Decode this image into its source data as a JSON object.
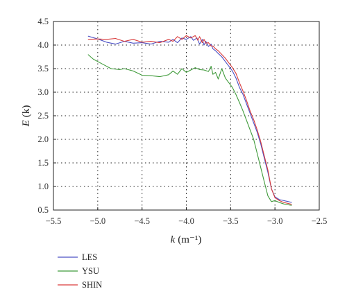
{
  "chart_data": {
    "type": "line",
    "xlabel": "k (m⁻¹)",
    "xlabel_var": "k",
    "xlabel_unit": "(m⁻¹)",
    "ylabel": "E (k)",
    "ylabel_var": "E",
    "ylabel_unit": "(k)",
    "xlim": [
      -5.5,
      -2.5
    ],
    "ylim": [
      0.5,
      4.5
    ],
    "xticks": [
      -5.5,
      -5.0,
      -4.5,
      -4.0,
      -3.5,
      -3.0,
      -2.5
    ],
    "xtick_labels": [
      "−5.5",
      "−5.0",
      "−4.5",
      "−4.0",
      "−3.5",
      "−3.0",
      "−2.5"
    ],
    "yticks": [
      0.5,
      1.0,
      1.5,
      2.0,
      2.5,
      3.0,
      3.5,
      4.0,
      4.5
    ],
    "ytick_labels": [
      "0.5",
      "1.0",
      "1.5",
      "2.0",
      "2.5",
      "3.0",
      "3.5",
      "4.0",
      "4.5"
    ],
    "grid": true,
    "legend_position": "bottom-left-below",
    "series": [
      {
        "name": "LES",
        "color": "#4a4fc4",
        "points": [
          [
            -5.11,
            4.19
          ],
          [
            -5.0,
            4.13
          ],
          [
            -4.9,
            4.06
          ],
          [
            -4.8,
            4.02
          ],
          [
            -4.7,
            4.08
          ],
          [
            -4.6,
            4.04
          ],
          [
            -4.5,
            4.05
          ],
          [
            -4.4,
            4.02
          ],
          [
            -4.3,
            4.08
          ],
          [
            -4.2,
            4.06
          ],
          [
            -4.15,
            4.12
          ],
          [
            -4.1,
            4.05
          ],
          [
            -4.05,
            4.15
          ],
          [
            -4.0,
            4.12
          ],
          [
            -3.95,
            4.18
          ],
          [
            -3.92,
            4.1
          ],
          [
            -3.88,
            4.15
          ],
          [
            -3.85,
            4.02
          ],
          [
            -3.82,
            4.12
          ],
          [
            -3.8,
            4.0
          ],
          [
            -3.78,
            4.08
          ],
          [
            -3.75,
            3.97
          ],
          [
            -3.72,
            4.02
          ],
          [
            -3.7,
            3.92
          ],
          [
            -3.67,
            3.88
          ],
          [
            -3.64,
            3.82
          ],
          [
            -3.6,
            3.75
          ],
          [
            -3.56,
            3.65
          ],
          [
            -3.52,
            3.55
          ],
          [
            -3.48,
            3.45
          ],
          [
            -3.44,
            3.3
          ],
          [
            -3.4,
            3.1
          ],
          [
            -3.36,
            2.95
          ],
          [
            -3.32,
            2.75
          ],
          [
            -3.28,
            2.55
          ],
          [
            -3.24,
            2.35
          ],
          [
            -3.2,
            2.15
          ],
          [
            -3.16,
            1.9
          ],
          [
            -3.12,
            1.6
          ],
          [
            -3.08,
            1.3
          ],
          [
            -3.04,
            0.95
          ],
          [
            -3.0,
            0.78
          ],
          [
            -2.95,
            0.72
          ],
          [
            -2.9,
            0.7
          ],
          [
            -2.85,
            0.68
          ],
          [
            -2.81,
            0.66
          ]
        ]
      },
      {
        "name": "YSU",
        "color": "#3f9a3a",
        "points": [
          [
            -5.11,
            3.8
          ],
          [
            -5.05,
            3.7
          ],
          [
            -4.95,
            3.6
          ],
          [
            -4.85,
            3.5
          ],
          [
            -4.75,
            3.48
          ],
          [
            -4.7,
            3.5
          ],
          [
            -4.6,
            3.45
          ],
          [
            -4.5,
            3.36
          ],
          [
            -4.4,
            3.35
          ],
          [
            -4.3,
            3.33
          ],
          [
            -4.2,
            3.37
          ],
          [
            -4.15,
            3.45
          ],
          [
            -4.1,
            3.38
          ],
          [
            -4.05,
            3.5
          ],
          [
            -4.0,
            3.42
          ],
          [
            -3.95,
            3.47
          ],
          [
            -3.9,
            3.52
          ],
          [
            -3.85,
            3.48
          ],
          [
            -3.8,
            3.47
          ],
          [
            -3.75,
            3.44
          ],
          [
            -3.72,
            3.55
          ],
          [
            -3.7,
            3.38
          ],
          [
            -3.67,
            3.42
          ],
          [
            -3.64,
            3.28
          ],
          [
            -3.6,
            3.5
          ],
          [
            -3.56,
            3.3
          ],
          [
            -3.52,
            3.2
          ],
          [
            -3.48,
            3.1
          ],
          [
            -3.44,
            2.95
          ],
          [
            -3.4,
            2.78
          ],
          [
            -3.36,
            2.6
          ],
          [
            -3.32,
            2.4
          ],
          [
            -3.28,
            2.2
          ],
          [
            -3.24,
            2.0
          ],
          [
            -3.2,
            1.7
          ],
          [
            -3.16,
            1.4
          ],
          [
            -3.12,
            1.1
          ],
          [
            -3.08,
            0.8
          ],
          [
            -3.04,
            0.68
          ],
          [
            -3.0,
            0.7
          ],
          [
            -2.95,
            0.66
          ],
          [
            -2.9,
            0.63
          ],
          [
            -2.85,
            0.61
          ],
          [
            -2.81,
            0.6
          ]
        ]
      },
      {
        "name": "SHIN",
        "color": "#d93a3a",
        "points": [
          [
            -5.11,
            4.12
          ],
          [
            -5.0,
            4.13
          ],
          [
            -4.9,
            4.12
          ],
          [
            -4.8,
            4.14
          ],
          [
            -4.7,
            4.08
          ],
          [
            -4.6,
            4.12
          ],
          [
            -4.5,
            4.06
          ],
          [
            -4.4,
            4.08
          ],
          [
            -4.3,
            4.05
          ],
          [
            -4.2,
            4.12
          ],
          [
            -4.15,
            4.08
          ],
          [
            -4.1,
            4.18
          ],
          [
            -4.05,
            4.12
          ],
          [
            -4.0,
            4.2
          ],
          [
            -3.95,
            4.15
          ],
          [
            -3.9,
            4.2
          ],
          [
            -3.87,
            4.1
          ],
          [
            -3.85,
            4.18
          ],
          [
            -3.82,
            4.05
          ],
          [
            -3.8,
            4.12
          ],
          [
            -3.78,
            4.04
          ],
          [
            -3.75,
            4.05
          ],
          [
            -3.72,
            3.98
          ],
          [
            -3.7,
            3.98
          ],
          [
            -3.67,
            3.92
          ],
          [
            -3.64,
            3.88
          ],
          [
            -3.6,
            3.8
          ],
          [
            -3.56,
            3.72
          ],
          [
            -3.52,
            3.62
          ],
          [
            -3.48,
            3.52
          ],
          [
            -3.44,
            3.4
          ],
          [
            -3.4,
            3.2
          ],
          [
            -3.36,
            3.02
          ],
          [
            -3.32,
            2.82
          ],
          [
            -3.28,
            2.6
          ],
          [
            -3.24,
            2.42
          ],
          [
            -3.2,
            2.2
          ],
          [
            -3.16,
            1.95
          ],
          [
            -3.12,
            1.65
          ],
          [
            -3.08,
            1.35
          ],
          [
            -3.04,
            0.95
          ],
          [
            -3.0,
            0.76
          ],
          [
            -2.95,
            0.7
          ],
          [
            -2.9,
            0.66
          ],
          [
            -2.85,
            0.64
          ],
          [
            -2.81,
            0.62
          ]
        ]
      }
    ]
  }
}
